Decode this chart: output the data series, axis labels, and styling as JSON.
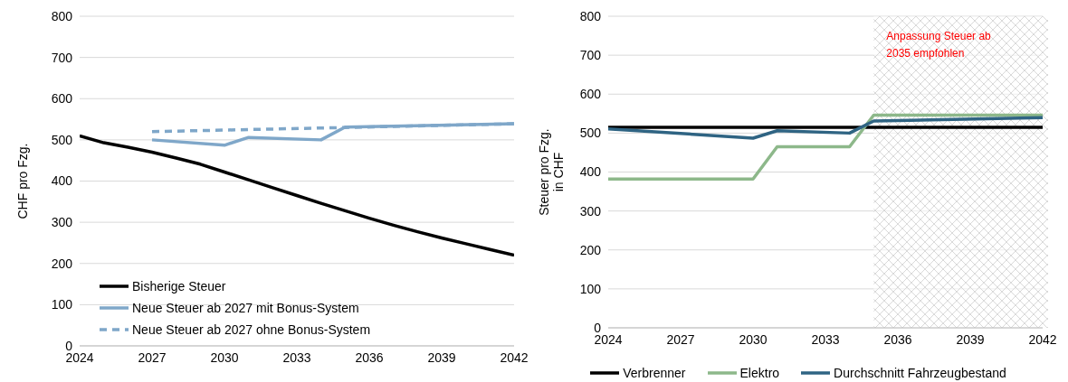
{
  "chart_data": [
    {
      "type": "line",
      "ylabel": "CHF pro Fzg.",
      "xlim": [
        2024,
        2042
      ],
      "xticks": [
        2024,
        2027,
        2030,
        2033,
        2036,
        2039,
        2042
      ],
      "ylim": [
        0,
        800
      ],
      "yticks": [
        0,
        100,
        200,
        300,
        400,
        500,
        600,
        700,
        800
      ],
      "grid": "y",
      "legend": "bottom left",
      "series": [
        {
          "name": "Bisherige Steuer",
          "color": "#000000",
          "x": [
            2024,
            2025,
            2026,
            2027,
            2028,
            2029,
            2030,
            2031,
            2032,
            2033,
            2034,
            2035,
            2036,
            2037,
            2038,
            2039,
            2040,
            2041,
            2042
          ],
          "values": [
            510,
            493,
            482,
            470,
            456,
            441,
            422,
            403,
            384,
            365,
            346,
            328,
            310,
            293,
            277,
            262,
            248,
            234,
            220
          ]
        },
        {
          "name": "Neue Steuer ab 2027 mit Bonus-System",
          "color": "#7fa7c9",
          "x": [
            2027,
            2030,
            2031,
            2034,
            2035,
            2042
          ],
          "values": [
            500,
            487,
            506,
            500,
            531,
            539
          ]
        },
        {
          "name": "Neue Steuer ab 2027 ohne Bonus-System",
          "color": "#7fa7c9",
          "line_style": "dashed",
          "x": [
            2027,
            2035,
            2042
          ],
          "values": [
            520,
            530,
            539
          ]
        }
      ]
    },
    {
      "type": "line",
      "ylabel": "Steuer pro Fzg.\nin CHF",
      "xlim": [
        2024,
        2042
      ],
      "xticks": [
        2024,
        2027,
        2030,
        2033,
        2036,
        2039,
        2042
      ],
      "ylim": [
        0,
        800
      ],
      "yticks": [
        0,
        100,
        200,
        300,
        400,
        500,
        600,
        700,
        800
      ],
      "grid": "y",
      "legend": "bottom",
      "bands": [
        {
          "axis": "x",
          "from": 2035,
          "to": 2042,
          "label": "Anpassung Steuer ab\n2035 empfohlen",
          "color": "#cfcfcf"
        }
      ],
      "series": [
        {
          "name": "Verbrenner",
          "color": "#000000",
          "x": [
            2024,
            2042
          ],
          "values": [
            515,
            515
          ]
        },
        {
          "name": "Elektro",
          "color": "#8db88a",
          "x": [
            2024,
            2030,
            2031,
            2034,
            2035,
            2042
          ],
          "values": [
            382,
            382,
            465,
            465,
            546,
            546
          ]
        },
        {
          "name": "Durchschnitt Fahrzeugbestand",
          "color": "#2f6483",
          "x": [
            2024,
            2030,
            2031,
            2034,
            2035,
            2042
          ],
          "values": [
            511,
            487,
            506,
            500,
            531,
            540
          ]
        }
      ]
    }
  ]
}
